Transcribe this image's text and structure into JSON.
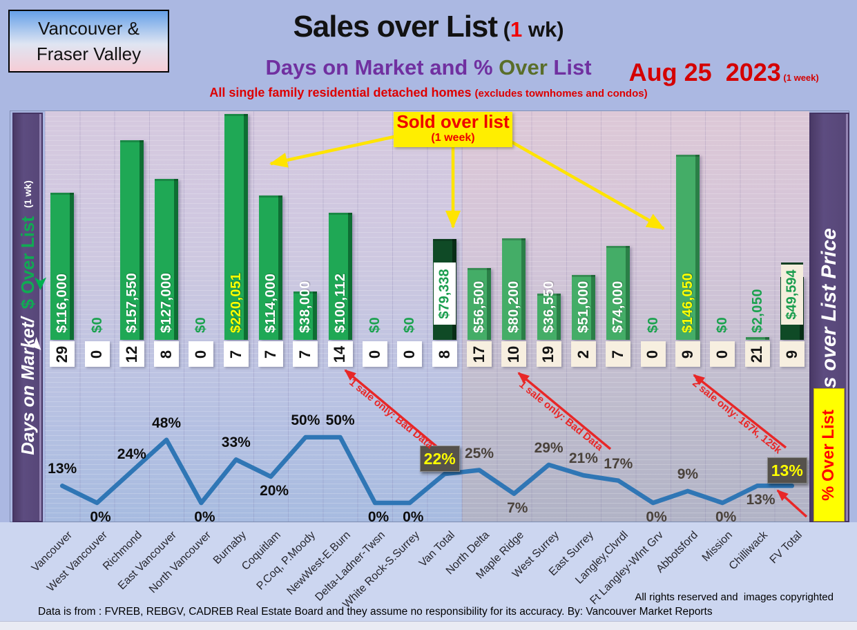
{
  "page": {
    "region_label_line1": "Vancouver &",
    "region_label_line2": "Fraser Valley",
    "title": {
      "pre": "Sales over List",
      "paren_open": " (",
      "one": "1",
      "paren_rest": " wk)"
    },
    "subtitle": {
      "pre": "Days on Market and % ",
      "over": "Over",
      "post": " List"
    },
    "tagline": {
      "main": "All single family residential detached homes ",
      "paren": "(excludes townhomes and condos)"
    },
    "date": {
      "main": "Aug 25  2023",
      "note": " (1 week)"
    }
  },
  "sidebar_left": {
    "white": "Days on Market/",
    "green": "$ Over List",
    "note": "(1 wk)"
  },
  "sidebar_right": {
    "label": "Sales over List Price"
  },
  "pct_over_list_box": {
    "label": "% Over List"
  },
  "callout": {
    "title": "Sold over list",
    "sub": "(1 week)"
  },
  "red_notes": [
    {
      "text": "1 sale only: Bad Data"
    },
    {
      "text": "1 sale only: Bad Data"
    },
    {
      "text": "2 sale only: 167k, 125k"
    }
  ],
  "footer": {
    "line1": "All rights reserved and  images copyrighted",
    "line2": "Data is from : FVREB, REBGV, CADREB Real Estate Board and they assume no responsibility for its accuracy. By: Vancouver Market Reports"
  },
  "chart_data": {
    "type": "bar+line",
    "title": "Sales over List (1 wk) - Days on Market and % Over List",
    "categories": [
      "Vancouver",
      "West Vancouver",
      "Richmond",
      "East Vancouver",
      "North Vancouver",
      "Burnaby",
      "Coquitlam",
      "P.Coq, P.Moody",
      "NewWest-E.Burn",
      "Delta-Ladner-Twsn",
      "White Rock-S.Surrey",
      "Van Total",
      "North Delta",
      "Maple Ridge",
      "West Surrey",
      "East Surrey",
      "Langley,Clvrdl",
      "Ft Langley-Wlnt Grv",
      "Abbotsford",
      "Mission",
      "Chilliwack",
      "FV Total"
    ],
    "series": [
      {
        "name": "$ Over List",
        "type": "bar",
        "values": [
          116000,
          0,
          157550,
          127000,
          0,
          220051,
          114000,
          38000,
          100112,
          0,
          0,
          79338,
          56500,
          80200,
          36550,
          51000,
          74000,
          0,
          146050,
          0,
          2050,
          49594
        ],
        "labels": [
          "$116,000",
          "$0",
          "$157,550",
          "$127,000",
          "$0",
          "$220,051",
          "$114,000",
          "$38,000",
          "$100,112",
          "$0",
          "$0",
          "$79,338",
          "$56,500",
          "$80,200",
          "$36,550",
          "$51,000",
          "$74,000",
          "$0",
          "$146,050",
          "$0",
          "$2,050",
          "$49,594"
        ]
      },
      {
        "name": "Days on Market",
        "type": "value-row",
        "values": [
          29,
          0,
          12,
          8,
          0,
          7,
          7,
          7,
          14,
          0,
          0,
          8,
          17,
          10,
          19,
          2,
          7,
          0,
          9,
          0,
          21,
          9
        ]
      },
      {
        "name": "% Over List",
        "type": "line",
        "values": [
          13,
          0,
          24,
          48,
          0,
          33,
          20,
          50,
          50,
          0,
          0,
          22,
          25,
          7,
          29,
          21,
          17,
          0,
          9,
          0,
          13,
          13
        ],
        "labels": [
          "13%",
          "0%",
          "24%",
          "48%",
          "0%",
          "33%",
          "20%",
          "50%",
          "50%",
          "0%",
          "0%",
          "22%",
          "25%",
          "7%",
          "29%",
          "21%",
          "17%",
          "0%",
          "9%",
          "0%",
          "13%",
          "13%"
        ]
      }
    ],
    "layout": {
      "vancouver_count": 12,
      "total_indexes": [
        11,
        21
      ],
      "yellow_label_indexes": [
        5,
        18
      ],
      "pct_label_pos": [
        "above",
        "below",
        "above",
        "above",
        "below",
        "above",
        "below",
        "above",
        "above",
        "below",
        "below",
        "box",
        "above",
        "below",
        "above",
        "above",
        "above",
        "below",
        "above",
        "below",
        "below",
        "box"
      ],
      "dollar_axis_visible_max": 180000,
      "line_axis_max": 50,
      "gridlines": "fine-horizontal",
      "legend": "none"
    },
    "colors": {
      "bar_green_van": "#1fa855",
      "bar_green_fv": "#44ad67",
      "bar_dark_total": "#0f4a26",
      "line_blue": "#2f76b5",
      "pct_box_bg": "#55514b",
      "pct_box_text": "#ffff00",
      "annotation_red": "#e82727",
      "callout_yellow": "#ffee00",
      "sidebar_purple": "#564677",
      "bar_label_yellow": "#ffff00"
    }
  }
}
